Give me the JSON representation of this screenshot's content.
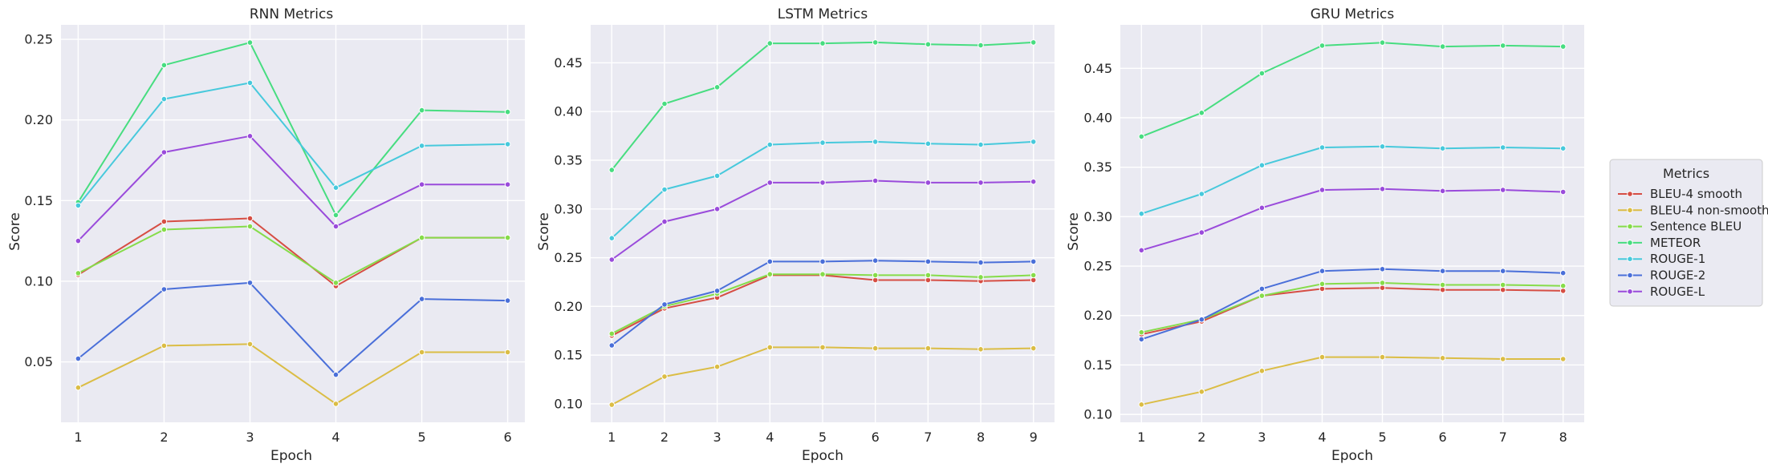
{
  "legend": {
    "title": "Metrics",
    "placement": "right",
    "entries": [
      {
        "name": "BLEU-4 smooth",
        "color": "#d64e44"
      },
      {
        "name": "BLEU-4 non-smooth",
        "color": "#dbbd45"
      },
      {
        "name": "Sentence BLEU",
        "color": "#86dc4a"
      },
      {
        "name": "METEOR",
        "color": "#47dd80"
      },
      {
        "name": "ROUGE-1",
        "color": "#47c9dc"
      },
      {
        "name": "ROUGE-2",
        "color": "#4a6fd9"
      },
      {
        "name": "ROUGE-L",
        "color": "#9a4bdb"
      }
    ]
  },
  "chart_data": [
    {
      "type": "line",
      "title": "RNN Metrics",
      "xlabel": "Epoch",
      "ylabel": "Score",
      "x": [
        1,
        2,
        3,
        4,
        5,
        6
      ],
      "xlim": [
        0.8,
        6.2
      ],
      "ylim": [
        0.0125,
        0.259
      ],
      "yticks": [
        0.05,
        0.1,
        0.15,
        0.2,
        0.25
      ],
      "ytick_labels": [
        "0.05",
        "0.10",
        "0.15",
        "0.20",
        "0.25"
      ],
      "grid": true,
      "series": [
        {
          "name": "BLEU-4 smooth",
          "values": [
            0.104,
            0.137,
            0.139,
            0.097,
            0.127,
            0.127
          ]
        },
        {
          "name": "BLEU-4 non-smooth",
          "values": [
            0.034,
            0.06,
            0.061,
            0.024,
            0.056,
            0.056
          ]
        },
        {
          "name": "Sentence BLEU",
          "values": [
            0.105,
            0.132,
            0.134,
            0.099,
            0.127,
            0.127
          ]
        },
        {
          "name": "METEOR",
          "values": [
            0.149,
            0.234,
            0.248,
            0.141,
            0.206,
            0.205
          ]
        },
        {
          "name": "ROUGE-1",
          "values": [
            0.147,
            0.213,
            0.223,
            0.158,
            0.184,
            0.185
          ]
        },
        {
          "name": "ROUGE-2",
          "values": [
            0.052,
            0.095,
            0.099,
            0.042,
            0.089,
            0.088
          ]
        },
        {
          "name": "ROUGE-L",
          "values": [
            0.125,
            0.18,
            0.19,
            0.134,
            0.16,
            0.16
          ]
        }
      ]
    },
    {
      "type": "line",
      "title": "LSTM Metrics",
      "xlabel": "Epoch",
      "ylabel": "Score",
      "x": [
        1,
        2,
        3,
        4,
        5,
        6,
        7,
        8,
        9
      ],
      "xlim": [
        0.6,
        9.4
      ],
      "ylim": [
        0.081,
        0.489
      ],
      "yticks": [
        0.1,
        0.15,
        0.2,
        0.25,
        0.3,
        0.35,
        0.4,
        0.45
      ],
      "ytick_labels": [
        "0.10",
        "0.15",
        "0.20",
        "0.25",
        "0.30",
        "0.35",
        "0.40",
        "0.45"
      ],
      "grid": true,
      "series": [
        {
          "name": "BLEU-4 smooth",
          "values": [
            0.17,
            0.198,
            0.209,
            0.232,
            0.232,
            0.227,
            0.227,
            0.226,
            0.227
          ]
        },
        {
          "name": "BLEU-4 non-smooth",
          "values": [
            0.099,
            0.128,
            0.138,
            0.158,
            0.158,
            0.157,
            0.157,
            0.156,
            0.157
          ]
        },
        {
          "name": "Sentence BLEU",
          "values": [
            0.172,
            0.2,
            0.213,
            0.233,
            0.233,
            0.232,
            0.232,
            0.23,
            0.232
          ]
        },
        {
          "name": "METEOR",
          "values": [
            0.34,
            0.408,
            0.425,
            0.47,
            0.47,
            0.471,
            0.469,
            0.468,
            0.471
          ]
        },
        {
          "name": "ROUGE-1",
          "values": [
            0.27,
            0.32,
            0.334,
            0.366,
            0.368,
            0.369,
            0.367,
            0.366,
            0.369
          ]
        },
        {
          "name": "ROUGE-2",
          "values": [
            0.16,
            0.202,
            0.216,
            0.246,
            0.246,
            0.247,
            0.246,
            0.245,
            0.246
          ]
        },
        {
          "name": "ROUGE-L",
          "values": [
            0.248,
            0.287,
            0.3,
            0.327,
            0.327,
            0.329,
            0.327,
            0.327,
            0.328
          ]
        }
      ]
    },
    {
      "type": "line",
      "title": "GRU Metrics",
      "xlabel": "Epoch",
      "ylabel": "Score",
      "x": [
        1,
        2,
        3,
        4,
        5,
        6,
        7,
        8
      ],
      "xlim": [
        0.65,
        8.35
      ],
      "ylim": [
        0.092,
        0.494
      ],
      "yticks": [
        0.1,
        0.15,
        0.2,
        0.25,
        0.3,
        0.35,
        0.4,
        0.45
      ],
      "ytick_labels": [
        "0.10",
        "0.15",
        "0.20",
        "0.25",
        "0.30",
        "0.35",
        "0.40",
        "0.45"
      ],
      "grid": true,
      "series": [
        {
          "name": "BLEU-4 smooth",
          "values": [
            0.181,
            0.194,
            0.22,
            0.227,
            0.228,
            0.226,
            0.226,
            0.225
          ]
        },
        {
          "name": "BLEU-4 non-smooth",
          "values": [
            0.11,
            0.123,
            0.144,
            0.158,
            0.158,
            0.157,
            0.156,
            0.156
          ]
        },
        {
          "name": "Sentence BLEU",
          "values": [
            0.183,
            0.196,
            0.22,
            0.232,
            0.233,
            0.231,
            0.231,
            0.23
          ]
        },
        {
          "name": "METEOR",
          "values": [
            0.381,
            0.405,
            0.445,
            0.473,
            0.476,
            0.472,
            0.473,
            0.472
          ]
        },
        {
          "name": "ROUGE-1",
          "values": [
            0.303,
            0.323,
            0.352,
            0.37,
            0.371,
            0.369,
            0.37,
            0.369
          ]
        },
        {
          "name": "ROUGE-2",
          "values": [
            0.176,
            0.196,
            0.227,
            0.245,
            0.247,
            0.245,
            0.245,
            0.243
          ]
        },
        {
          "name": "ROUGE-L",
          "values": [
            0.266,
            0.284,
            0.309,
            0.327,
            0.328,
            0.326,
            0.327,
            0.325
          ]
        }
      ]
    }
  ]
}
